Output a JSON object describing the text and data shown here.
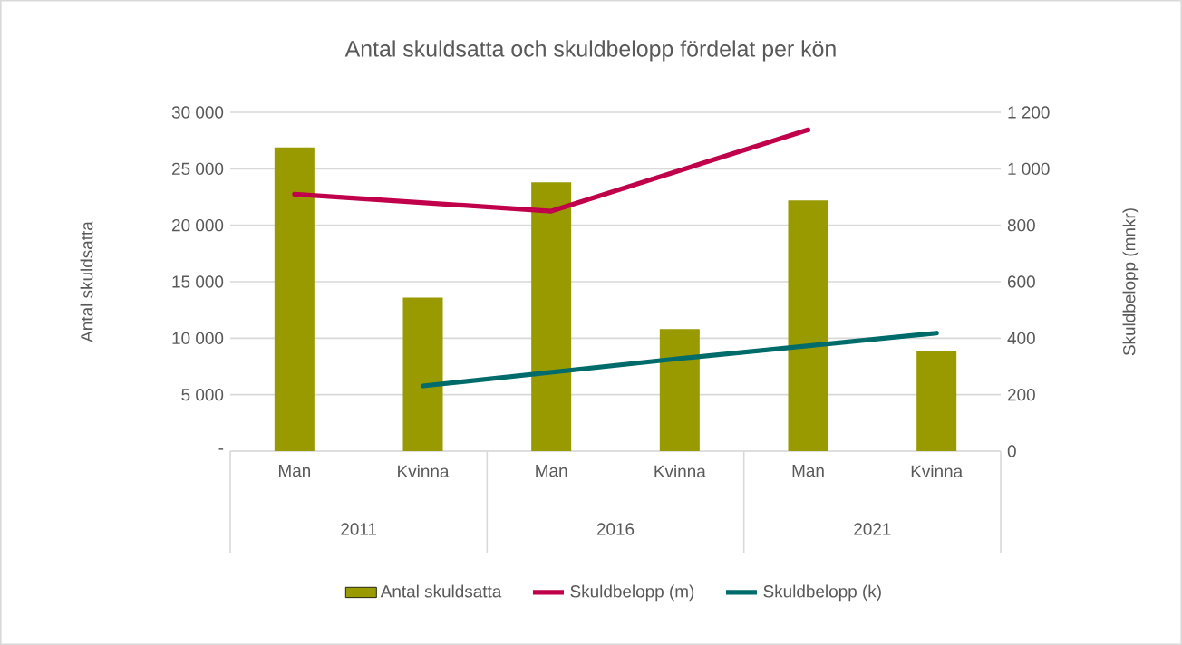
{
  "chart_data": {
    "type": "bar",
    "title": "Antal skuldsatta och skuldbelopp fördelat per kön",
    "ylabel": "Antal skuldsatta",
    "y2label": "Skuldbelopp (mnkr)",
    "categories": [
      "Man",
      "Kvinna",
      "Man",
      "Kvinna",
      "Man",
      "Kvinna"
    ],
    "annotations": [
      "2011",
      "2016",
      "2021"
    ],
    "series": [
      {
        "name": "Antal skuldsatta",
        "color": "#999900",
        "values": [
          26900,
          13600,
          23800,
          10800,
          22200,
          8900
        ]
      },
      {
        "name": "Skuldbelopp (m)",
        "type": "line",
        "axis": "y2",
        "color": "#c0004a",
        "values": [
          910,
          null,
          850,
          null,
          1138,
          null
        ]
      },
      {
        "name": "Skuldbelopp (k)",
        "type": "line",
        "axis": "y2",
        "color": "#006b6b",
        "values": [
          null,
          231,
          null,
          328,
          null,
          418
        ]
      }
    ],
    "ylim": [
      0,
      30000
    ],
    "yticks": [
      {
        "value": 0,
        "label": "-"
      },
      {
        "value": 5000,
        "label": "5 000"
      },
      {
        "value": 10000,
        "label": "10 000"
      },
      {
        "value": 15000,
        "label": "15 000"
      },
      {
        "value": 20000,
        "label": "20 000"
      },
      {
        "value": 25000,
        "label": "25 000"
      },
      {
        "value": 30000,
        "label": "30 000"
      }
    ],
    "y2lim": [
      0,
      1200
    ],
    "y2ticks": [
      0,
      200,
      400,
      600,
      800,
      {
        "value": 1000,
        "label": "1 000"
      },
      {
        "value": 1200,
        "label": "1 200"
      }
    ],
    "grid": "y",
    "legend": "bottom"
  }
}
